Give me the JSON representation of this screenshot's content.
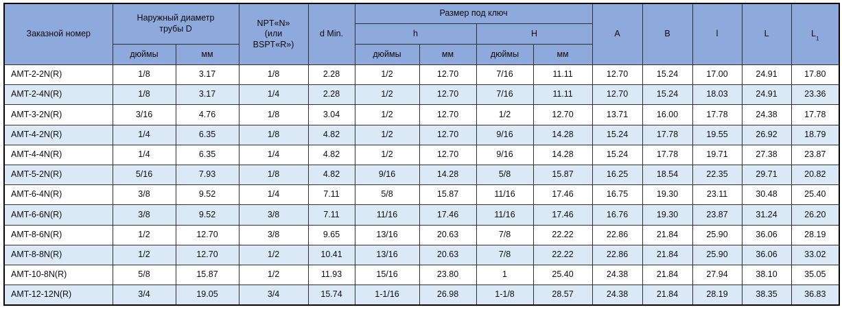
{
  "table": {
    "header": {
      "order_number": "Заказной номер",
      "outer_diameter": "Наружный диаметр\nтрубы D",
      "npt": "NPT«N»\n(или\nBSPT«R»)",
      "d_min": "d Min.",
      "wrench_size": "Размер под ключ",
      "h_small": "h",
      "h_big": "H",
      "unit_inches": "дюймы",
      "unit_mm": "мм",
      "a": "A",
      "b": "B",
      "l_small": "l",
      "l_big": "L",
      "l1_base": "L",
      "l1_sub": "1"
    },
    "colors": {
      "header_bg": "#8EA9DB",
      "row_alt_bg": "#DBE9F7",
      "row_bg": "#FFFFFF",
      "border": "#2F2F2F",
      "text": "#0B0B0B"
    },
    "rows": [
      [
        "AMT-2-2N(R)",
        "1/8",
        "3.17",
        "1/8",
        "2.28",
        "1/2",
        "12.70",
        "7/16",
        "11.11",
        "12.70",
        "15.24",
        "17.00",
        "24.91",
        "17.80"
      ],
      [
        "AMT-2-4N(R)",
        "1/8",
        "3.17",
        "1/4",
        "2.28",
        "1/2",
        "12.70",
        "7/16",
        "11.11",
        "12.70",
        "15.24",
        "18.03",
        "24.91",
        "23.36"
      ],
      [
        "AMT-3-2N(R)",
        "3/16",
        "4.76",
        "1/8",
        "3.04",
        "1/2",
        "12.70",
        "1/2",
        "12.70",
        "13.71",
        "16.00",
        "17.78",
        "24.38",
        "17.78"
      ],
      [
        "AMT-4-2N(R)",
        "1/4",
        "6.35",
        "1/8",
        "4.82",
        "1/2",
        "12.70",
        "9/16",
        "14.28",
        "15.24",
        "17.78",
        "19.55",
        "26.92",
        "18.79"
      ],
      [
        "AMT-4-4N(R)",
        "1/4",
        "6.35",
        "1/4",
        "4.82",
        "1/2",
        "12.70",
        "9/16",
        "14.28",
        "15.24",
        "17.78",
        "19.71",
        "27.38",
        "23.87"
      ],
      [
        "AMT-5-2N(R)",
        "5/16",
        "7.93",
        "1/8",
        "4.82",
        "9/16",
        "14.28",
        "5/8",
        "15.87",
        "16.25",
        "18.54",
        "22.35",
        "29.71",
        "20.82"
      ],
      [
        "AMT-6-4N(R)",
        "3/8",
        "9.52",
        "1/4",
        "7.11",
        "5/8",
        "15.87",
        "11/16",
        "17.46",
        "16.75",
        "19.30",
        "23.11",
        "30.48",
        "25.40"
      ],
      [
        "AMT-6-6N(R)",
        "3/8",
        "9.52",
        "3/8",
        "7.11",
        "11/16",
        "17.46",
        "11/16",
        "17.46",
        "16.76",
        "19.30",
        "23.87",
        "31.24",
        "26.20"
      ],
      [
        "AMT-8-6N(R)",
        "1/2",
        "12.70",
        "3/8",
        "9.65",
        "13/16",
        "20.63",
        "7/8",
        "22.22",
        "22.86",
        "21.84",
        "25.90",
        "36.06",
        "28.19"
      ],
      [
        "AMT-8-8N(R)",
        "1/2",
        "12.70",
        "1/2",
        "10.41",
        "13/16",
        "20.63",
        "7/8",
        "22.22",
        "22.86",
        "21.84",
        "25.90",
        "36.06",
        "33.02"
      ],
      [
        "AMT-10-8N(R)",
        "5/8",
        "15.87",
        "1/2",
        "11.93",
        "15/16",
        "23.80",
        "1",
        "25.40",
        "24.38",
        "21.84",
        "27.94",
        "38.10",
        "35.05"
      ],
      [
        "AMT-12-12N(R)",
        "3/4",
        "19.05",
        "3/4",
        "15.74",
        "1-1/16",
        "26.98",
        "1-1/8",
        "28.57",
        "24.38",
        "21.84",
        "28.19",
        "38.35",
        "36.83"
      ]
    ]
  }
}
